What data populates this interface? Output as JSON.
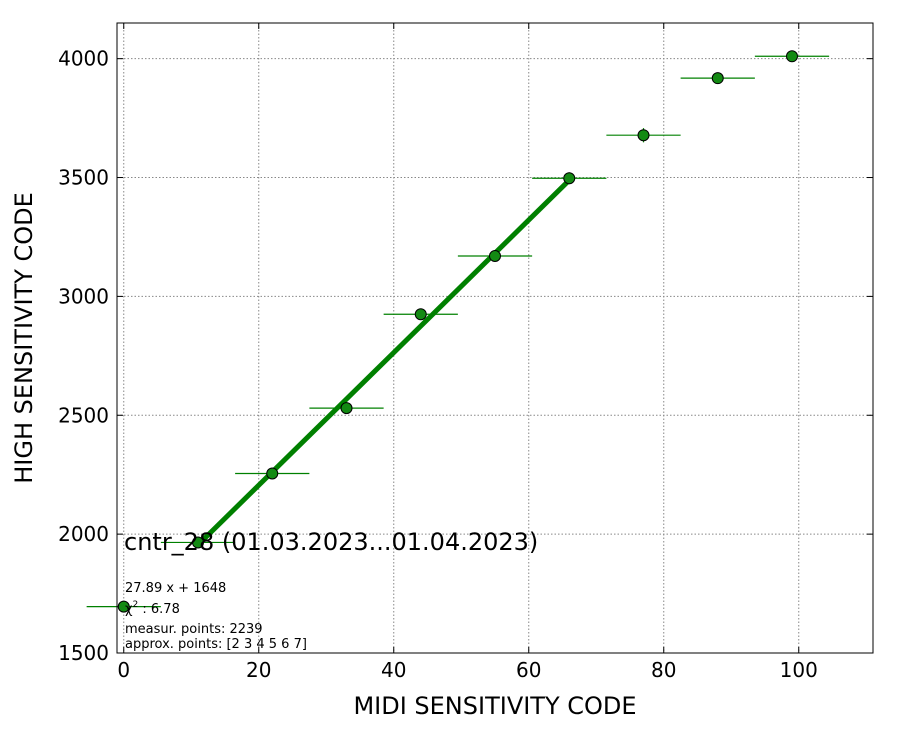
{
  "chart_data": {
    "type": "scatter",
    "xlabel": "MIDI SENSITIVITY CODE",
    "ylabel": "HIGH SENSITIVITY CODE",
    "xlim": [
      -1,
      111
    ],
    "ylim": [
      1500,
      4150
    ],
    "xticks": [
      0,
      20,
      40,
      60,
      80,
      100
    ],
    "yticks": [
      1500,
      2000,
      2500,
      3000,
      3500,
      4000
    ],
    "grid": true,
    "colors": {
      "marker": "#138a13",
      "fit_line": "#008000",
      "errorbar": "#008000"
    },
    "points": {
      "x": [
        0,
        11,
        22,
        33,
        44,
        55,
        66,
        77,
        88,
        99
      ],
      "y": [
        1695,
        1965,
        2255,
        2530,
        2925,
        3170,
        3497,
        3678,
        3918,
        4010
      ],
      "x_err": [
        5.5,
        5.5,
        5.5,
        5.5,
        5.5,
        5.5,
        5.5,
        5.5,
        5.5,
        5.5
      ],
      "y_err": [
        5,
        5,
        8,
        10,
        12,
        12,
        25,
        30,
        12,
        10
      ]
    },
    "fit": {
      "slope": 27.89,
      "intercept": 1648,
      "x_range": [
        11,
        66
      ]
    },
    "annotations": {
      "title": "cntr_28 (01.03.2023...01.04.2023)",
      "equation": "27.89 x + 1648",
      "chi2_symbol": "χ",
      "chi2_sup": "2",
      "chi2_value": " : 6.78",
      "measured": "measur. points: 2239",
      "approx": "approx. points: [2 3 4 5 6 7]"
    }
  }
}
